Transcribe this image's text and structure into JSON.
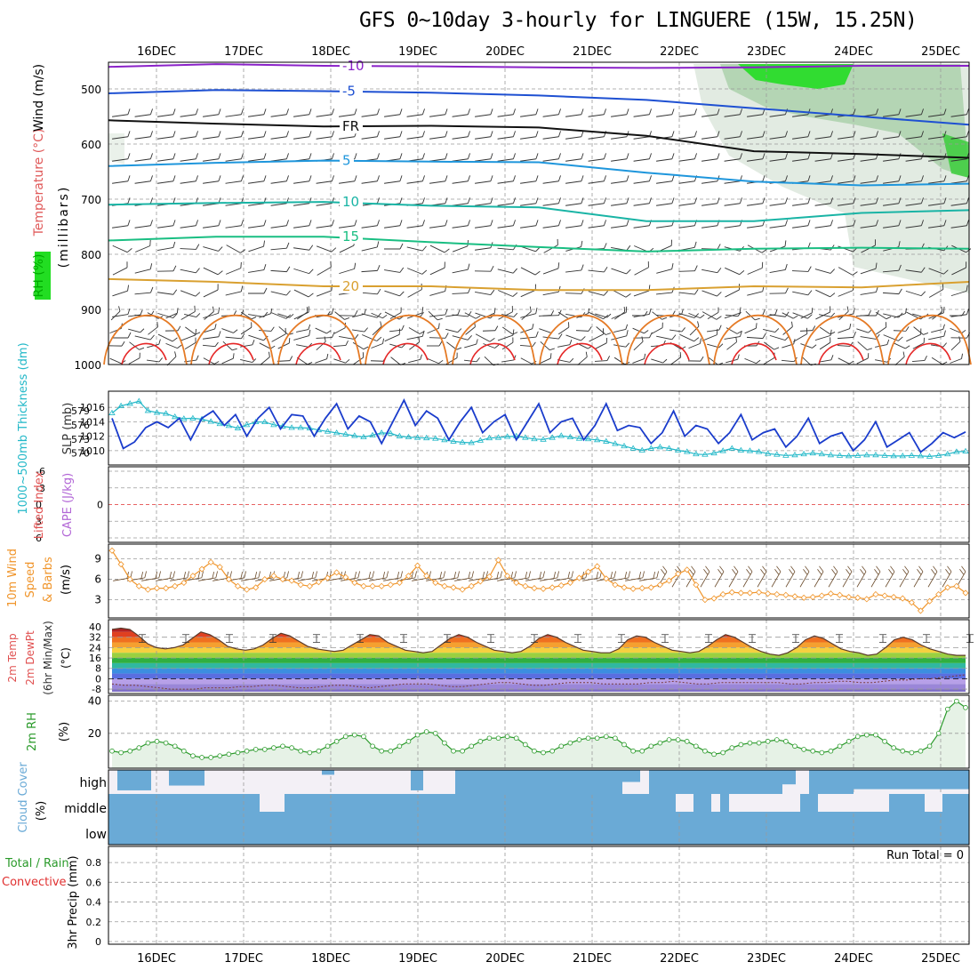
{
  "title": "GFS 0~10day 3-hourly for LINGUERE (15W, 15.25N)",
  "dates": [
    "16DEC",
    "17DEC",
    "18DEC",
    "19DEC",
    "20DEC",
    "21DEC",
    "22DEC",
    "23DEC",
    "24DEC",
    "25DEC"
  ],
  "run_total": "Run Total = 0",
  "colors": {
    "frame": "#000000",
    "grid": "#9a9a9a",
    "slp": "#1a3ccc",
    "thickness": "#22b8c8",
    "wind_speed": "#f0952b",
    "barb": "#6b4b2b",
    "rh": "#2a9a2a",
    "rh_fill": "#e6f2e6",
    "cloud": "#6aaad6",
    "cloud_clear": "#f3f0f6",
    "zero_line": "#e03030"
  },
  "panels": {
    "upper": {
      "labels": [
        "RH (%)",
        "Temperature (°C)",
        "Wind (m/s)",
        "(millibars)"
      ],
      "yticks": [
        "500",
        "600",
        "700",
        "800",
        "900",
        "1000"
      ],
      "contours": [
        {
          "label": "-10",
          "color": "#8a22c8",
          "values": [
            460,
            455,
            458,
            459,
            461,
            462,
            461,
            458,
            458
          ]
        },
        {
          "label": "-5",
          "color": "#1e50d2",
          "values": [
            508,
            502,
            504,
            507,
            512,
            520,
            535,
            550,
            565
          ]
        },
        {
          "label": "FR",
          "color": "#111111",
          "values": [
            557,
            563,
            568,
            567,
            570,
            585,
            613,
            618,
            625
          ]
        },
        {
          "label": "5",
          "color": "#1e96dc",
          "values": [
            640,
            634,
            630,
            632,
            633,
            652,
            668,
            675,
            672
          ]
        },
        {
          "label": "10",
          "color": "#19b4a5",
          "values": [
            710,
            707,
            705,
            712,
            715,
            740,
            740,
            725,
            720
          ]
        },
        {
          "label": "15",
          "color": "#19be82",
          "values": [
            775,
            768,
            768,
            778,
            787,
            795,
            790,
            788,
            790
          ]
        },
        {
          "label": "20",
          "color": "#d9a030",
          "values": [
            845,
            850,
            858,
            858,
            865,
            865,
            858,
            860,
            850
          ]
        }
      ]
    },
    "pressure": {
      "labels": [
        "1000~500mb Thickness (dm)",
        "SLP (mb)"
      ],
      "left_ticks": [
        "579",
        "576",
        "573",
        "570"
      ],
      "right_ticks": [
        "1016",
        "1014",
        "1012",
        "1010"
      ],
      "slp_mb": [
        1014.5,
        1010.3,
        1011.2,
        1013.2,
        1014.0,
        1013.2,
        1014.5,
        1011.5,
        1014.5,
        1015.5,
        1013.5,
        1015.0,
        1012.0,
        1014.5,
        1016.0,
        1013.0,
        1015.0,
        1014.8,
        1012.0,
        1014.5,
        1016.5,
        1013.0,
        1014.8,
        1014.0,
        1011.0,
        1014.0,
        1017.0,
        1013.5,
        1015.5,
        1014.5,
        1011.5,
        1014.0,
        1016.0,
        1012.5,
        1014.0,
        1015.0,
        1011.5,
        1014.0,
        1016.5,
        1012.5,
        1014.0,
        1014.5,
        1011.5,
        1013.5,
        1016.5,
        1012.8,
        1013.5,
        1013.2,
        1011.0,
        1012.5,
        1015.5,
        1012.0,
        1013.5,
        1013.0,
        1011.0,
        1012.5,
        1015.0,
        1011.5,
        1012.5,
        1013.0,
        1010.5,
        1012.0,
        1014.5,
        1011.0,
        1012.0,
        1012.5,
        1010.0,
        1011.5,
        1014.0,
        1010.5,
        1011.5,
        1012.5,
        1009.8,
        1011.0,
        1012.5,
        1011.8,
        1012.6
      ],
      "thickness_dm": [
        578.5,
        580,
        580.5,
        581,
        579,
        578.6,
        578.4,
        577.7,
        577.3,
        577.4,
        577.2,
        576.7,
        576.2,
        575.8,
        575.3,
        576.0,
        576.6,
        576.6,
        576.0,
        575.7,
        575.4,
        575.4,
        575.3,
        574.9,
        574.6,
        574.3,
        574.0,
        573.7,
        573.4,
        573.8,
        574.3,
        574.2,
        573.6,
        573.4,
        573.3,
        573.2,
        573.1,
        572.8,
        572.5,
        572.3,
        572.2,
        572.7,
        573.2,
        573.3,
        573.5,
        573.6,
        573.3,
        573.0,
        572.9,
        573.3,
        573.7,
        573.4,
        573.1,
        573.0,
        572.8,
        572.5,
        572.0,
        571.5,
        571.0,
        570.6,
        571.0,
        571.3,
        571.0,
        570.6,
        570.3,
        569.8,
        569.7,
        570.0,
        570.5,
        571.0,
        570.6,
        570.5,
        570.3,
        569.9,
        569.7,
        569.5,
        569.6,
        569.8,
        570.0,
        569.8,
        569.6,
        569.5,
        569.4,
        569.5,
        569.6,
        569.6,
        569.5,
        569.4,
        569.4,
        569.5,
        569.4,
        569.3,
        569.5,
        569.8,
        570.3,
        570.4
      ]
    },
    "cape": {
      "labels": [
        "Lifted Index",
        "CAPE (J/kg)"
      ],
      "left_ticks": [
        "-6",
        "-3",
        "0",
        "3",
        "6"
      ],
      "right_ticks": [
        "0"
      ]
    },
    "wind": {
      "labels": [
        "10m Wind",
        "Speed",
        "& Barbs",
        "(m/s)"
      ],
      "yticks": [
        "9",
        "6",
        "3"
      ],
      "speed_ms": [
        10.2,
        8.2,
        6.0,
        5.0,
        4.5,
        4.7,
        4.7,
        5.0,
        5.5,
        6.5,
        7.5,
        8.5,
        7.8,
        6.0,
        5.0,
        4.5,
        4.8,
        6.0,
        6.5,
        6.0,
        5.8,
        5.2,
        5.0,
        5.6,
        6.2,
        7.0,
        6.3,
        5.5,
        5.0,
        5.0,
        5.0,
        5.2,
        5.5,
        6.5,
        8.0,
        6.5,
        5.5,
        5.0,
        4.8,
        4.5,
        5.0,
        5.7,
        6.4,
        8.8,
        6.5,
        5.5,
        5.0,
        4.7,
        4.6,
        4.8,
        5.1,
        5.5,
        6.2,
        7.1,
        7.9,
        6.1,
        5.2,
        4.8,
        4.6,
        4.7,
        4.8,
        5.2,
        5.8,
        6.8,
        7.4,
        5.2,
        3.0,
        3.2,
        3.8,
        4.1,
        4.0,
        4.0,
        4.1,
        3.9,
        3.8,
        3.7,
        3.5,
        3.3,
        3.4,
        3.6,
        3.9,
        3.7,
        3.4,
        3.3,
        3.1,
        3.8,
        3.6,
        3.4,
        3.2,
        2.6,
        1.4,
        2.8,
        3.8,
        4.8,
        5.0,
        4.0
      ]
    },
    "temp": {
      "labels": [
        "2m Temp",
        "2m DewPt",
        "(6hr Min/Max)",
        "(°C)"
      ],
      "yticks": [
        "40",
        "32",
        "24",
        "16",
        "8",
        "0",
        "-8"
      ],
      "temp_c": [
        38,
        39,
        38,
        33,
        27,
        24,
        23,
        24,
        26,
        31,
        36,
        34,
        30,
        25,
        23,
        22,
        23,
        26,
        31,
        35,
        33,
        29,
        25,
        23,
        22,
        21,
        22,
        26,
        30,
        34,
        33,
        28,
        25,
        22,
        21,
        20,
        21,
        26,
        31,
        34,
        32,
        28,
        25,
        22,
        21,
        20,
        21,
        25,
        31,
        34,
        32,
        28,
        25,
        22,
        21,
        20,
        20,
        23,
        30,
        33,
        32,
        28,
        25,
        22,
        21,
        20,
        21,
        25,
        30,
        34,
        32,
        28,
        24,
        21,
        19,
        18,
        20,
        24,
        30,
        33,
        31,
        27,
        23,
        21,
        20,
        18,
        19,
        24,
        30,
        32,
        30,
        26,
        23,
        21,
        19,
        18,
        18
      ],
      "dewpt_c": [
        -4,
        -5,
        -5,
        -6,
        -7,
        -8,
        -8,
        -8,
        -7,
        -7,
        -7,
        -6,
        -6,
        -5,
        -5,
        -6,
        -7,
        -7,
        -6,
        -5,
        -5,
        -6,
        -7,
        -6,
        -5,
        -4,
        -4,
        -4,
        -5,
        -6,
        -6,
        -5,
        -4,
        -3,
        -3,
        -4,
        -5,
        -5,
        -4,
        -3,
        -3,
        -3,
        -4,
        -4,
        -4,
        -4,
        -3,
        -3,
        -2,
        -3,
        -4,
        -4,
        -3,
        -3,
        -3,
        -3,
        -3,
        -3,
        -4,
        -4,
        -3,
        -3,
        -2,
        -2,
        -3,
        -3,
        -2,
        -1,
        -1,
        0,
        0,
        1,
        2,
        3
      ]
    },
    "rh": {
      "labels": [
        "2m RH",
        "(%)"
      ],
      "yticks": [
        "40",
        "20"
      ],
      "rh_pct": [
        9,
        8,
        9,
        11,
        14,
        15,
        14,
        12,
        9,
        6,
        5,
        5,
        6,
        7,
        8,
        9,
        10,
        10,
        11,
        12,
        11,
        9,
        8,
        9,
        12,
        15,
        18,
        19,
        18,
        12,
        9,
        9,
        12,
        15,
        19,
        21,
        20,
        14,
        9,
        9,
        12,
        15,
        17,
        17,
        18,
        17,
        13,
        9,
        8,
        9,
        12,
        14,
        16,
        17,
        17,
        18,
        17,
        13,
        9,
        9,
        12,
        14,
        16,
        16,
        15,
        12,
        9,
        7,
        8,
        11,
        13,
        14,
        14,
        15,
        16,
        15,
        12,
        10,
        9,
        8,
        9,
        12,
        15,
        18,
        19,
        19,
        15,
        11,
        9,
        8,
        9,
        12,
        20,
        35,
        40,
        36
      ]
    },
    "cloud": {
      "labels": [
        "Cloud Cover",
        "(%)"
      ],
      "level_labels": [
        "high",
        "middle",
        "low"
      ]
    },
    "precip": {
      "labels": [
        "Total / Rain",
        "Convective",
        "3hr Precip (mm)"
      ],
      "yticks": [
        "0.8",
        "0.6",
        "0.4",
        "0.2",
        "0"
      ]
    }
  }
}
